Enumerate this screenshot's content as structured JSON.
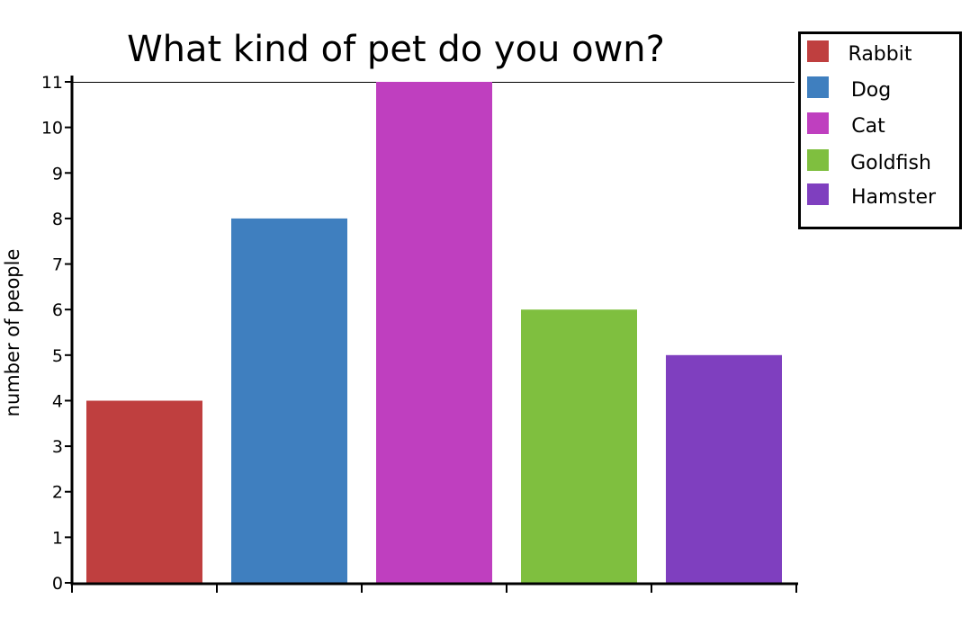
{
  "chart_data": {
    "type": "bar",
    "title": "What kind of pet do you own?",
    "xlabel": "",
    "ylabel": "number of people",
    "categories": [
      "Rabbit",
      "Dog",
      "Cat",
      "Goldfish",
      "Hamster"
    ],
    "values": [
      4,
      8,
      11,
      6,
      5
    ],
    "colors": [
      "#bf3f3f",
      "#3f7fbf",
      "#bf3fbf",
      "#7fbf3f",
      "#7f3fbf"
    ],
    "ylim": [
      0,
      11
    ],
    "yticks": [
      0,
      1,
      2,
      3,
      4,
      5,
      6,
      7,
      8,
      9,
      10,
      11
    ],
    "legend_position": "top-right",
    "grid": false
  }
}
